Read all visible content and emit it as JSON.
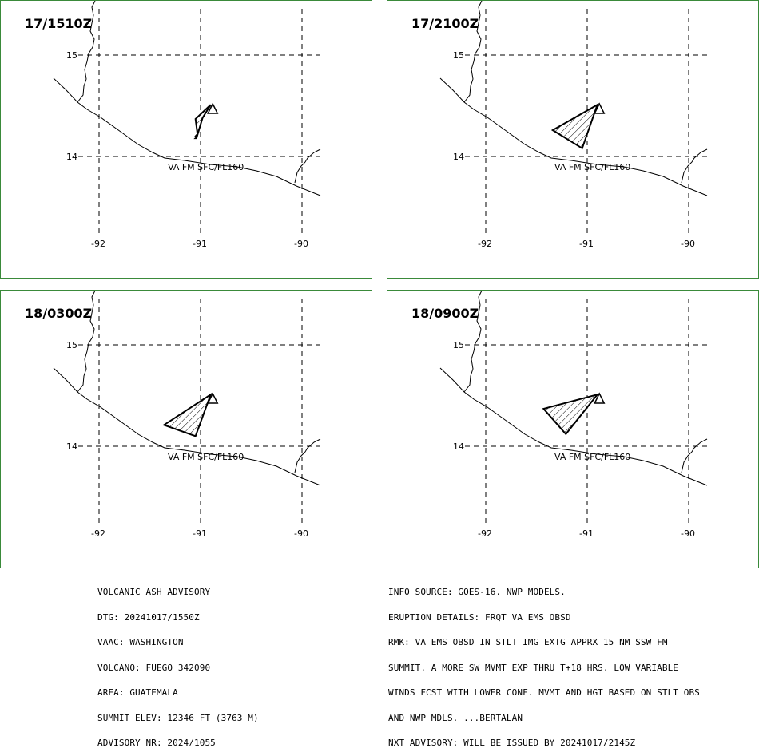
{
  "panels": [
    {
      "time": "17/1510Z",
      "lat_labels": [
        "15",
        "14"
      ],
      "lon_labels": [
        "-92",
        "-91",
        "-90"
      ],
      "ash_label": "VA FM SFC/FL160",
      "ash_polygon_lonlat": [
        [
          -90.9,
          14.51
        ],
        [
          -90.98,
          14.38
        ],
        [
          -91.04,
          14.18
        ],
        [
          -91.05,
          14.18
        ],
        [
          -91.04,
          14.19
        ],
        [
          -91.05,
          14.2
        ],
        [
          -91.04,
          14.21
        ],
        [
          -91.03,
          14.22
        ],
        [
          -91.05,
          14.37
        ]
      ]
    },
    {
      "time": "17/2100Z",
      "lat_labels": [
        "15",
        "14"
      ],
      "lon_labels": [
        "-92",
        "-91",
        "-90"
      ],
      "ash_label": "VA FM SFC/FL160",
      "ash_polygon_lonlat": [
        [
          -90.9,
          14.51
        ],
        [
          -91.05,
          14.08
        ],
        [
          -91.34,
          14.26
        ]
      ]
    },
    {
      "time": "18/0300Z",
      "lat_labels": [
        "15",
        "14"
      ],
      "lon_labels": [
        "-92",
        "-91",
        "-90"
      ],
      "ash_label": "VA FM SFC/FL160",
      "ash_polygon_lonlat": [
        [
          -90.9,
          14.51
        ],
        [
          -91.05,
          14.1
        ],
        [
          -91.36,
          14.21
        ]
      ]
    },
    {
      "time": "18/0900Z",
      "lat_labels": [
        "15",
        "14"
      ],
      "lon_labels": [
        "-92",
        "-91",
        "-90"
      ],
      "ash_label": "VA FM SFC/FL160",
      "ash_polygon_lonlat": [
        [
          -90.9,
          14.51
        ],
        [
          -91.21,
          14.12
        ],
        [
          -91.43,
          14.37
        ]
      ]
    }
  ],
  "advisory_left": [
    "VOLCANIC ASH ADVISORY",
    "DTG: 20241017/1550Z",
    "VAAC: WASHINGTON",
    "VOLCANO: FUEGO 342090",
    "AREA: GUATEMALA",
    "SUMMIT ELEV: 12346 FT (3763 M)",
    "ADVISORY NR: 2024/1055"
  ],
  "advisory_right": [
    "INFO SOURCE: GOES-16. NWP MODELS.",
    "ERUPTION DETAILS: FRQT VA EMS OBSD",
    "RMK: VA EMS OBSD IN STLT IMG EXTG APPRX 15 NM SSW FM",
    "SUMMIT. A MORE SW MVMT EXP THRU T+18 HRS. LOW VARIABLE",
    "WINDS FCST WITH LOWER CONF. MVMT AND HGT BASED ON STLT OBS",
    "AND NWP MDLS. ...BERTALAN",
    "NXT ADVISORY: WILL BE ISSUED BY 20241017/2145Z"
  ],
  "colors": {
    "panel_border": "#3a8a3a",
    "lines": "#000000",
    "background": "#ffffff"
  }
}
